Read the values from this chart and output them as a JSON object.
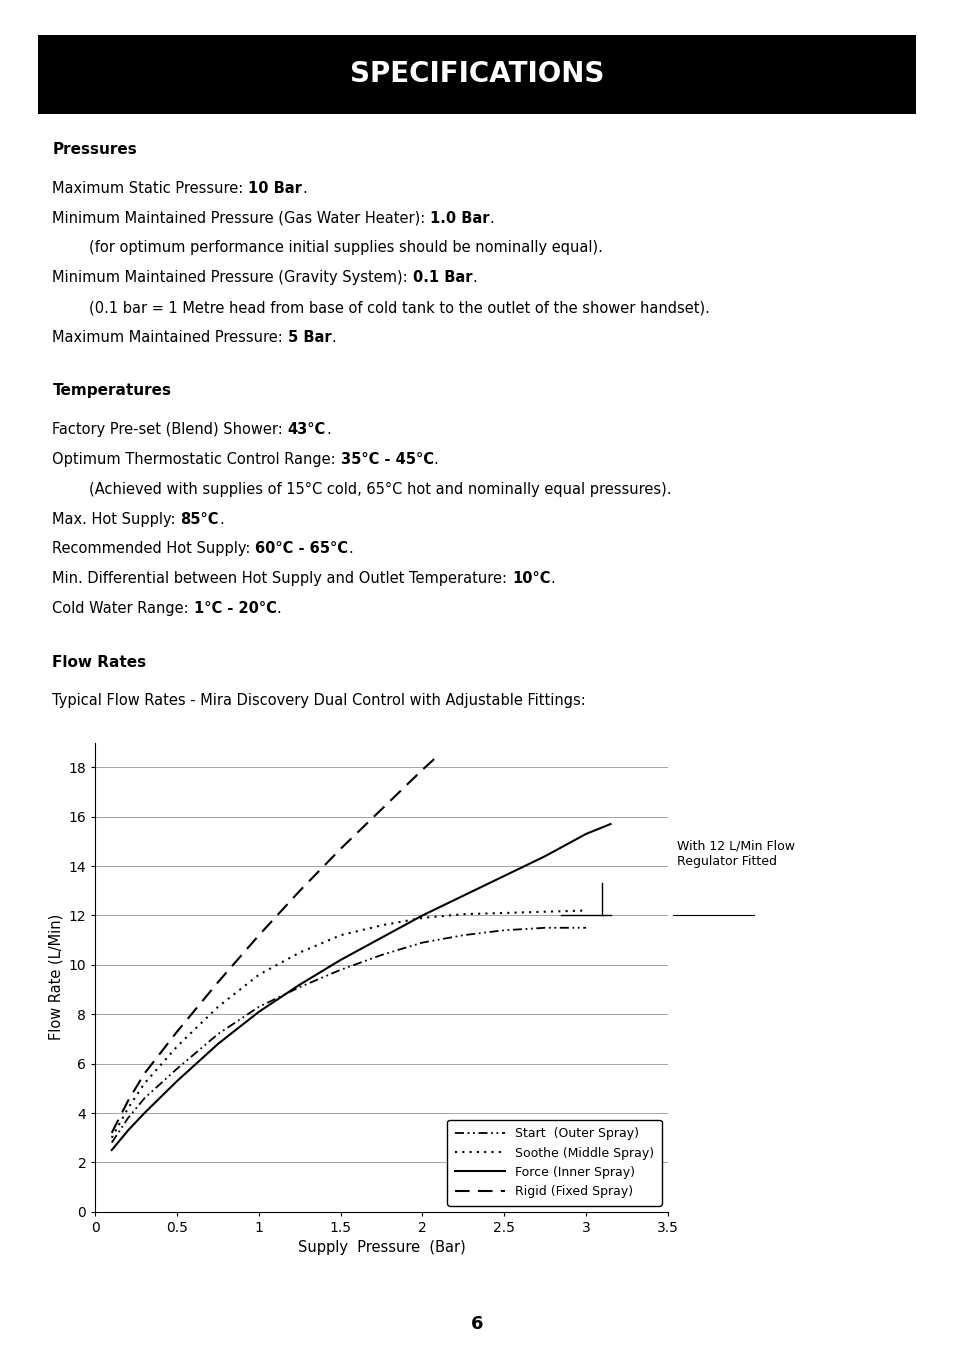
{
  "title": "SPECIFICATIONS",
  "title_bg": "#000000",
  "title_color": "#ffffff",
  "page_number": "6",
  "pressures_heading": "Pressures",
  "temperatures_heading": "Temperatures",
  "flow_rates_heading": "Flow Rates",
  "flow_rates_desc": "Typical Flow Rates - Mira Discovery Dual Control with Adjustable Fittings:",
  "xlabel": "Supply  Pressure  (Bar)",
  "ylabel": "Flow Rate (L/Min)",
  "xlim": [
    0,
    3.5
  ],
  "ylim": [
    0,
    19
  ],
  "xticks": [
    0,
    0.5,
    1.0,
    1.5,
    2.0,
    2.5,
    3.0,
    3.5
  ],
  "yticks": [
    0,
    2,
    4,
    6,
    8,
    10,
    12,
    14,
    16,
    18
  ],
  "annotation_text": "With 12 L/Min Flow\nRegulator Fitted",
  "curves": {
    "start_x": [
      0.1,
      0.2,
      0.3,
      0.5,
      0.75,
      1.0,
      1.25,
      1.5,
      1.75,
      2.0,
      2.25,
      2.5,
      2.75,
      3.0
    ],
    "start_y": [
      2.8,
      3.8,
      4.6,
      5.8,
      7.2,
      8.3,
      9.1,
      9.8,
      10.4,
      10.9,
      11.2,
      11.4,
      11.5,
      11.5
    ],
    "soothe_x": [
      0.1,
      0.2,
      0.3,
      0.5,
      0.75,
      1.0,
      1.25,
      1.5,
      1.75,
      2.0,
      2.25,
      2.5,
      2.75,
      3.0
    ],
    "soothe_y": [
      3.0,
      4.2,
      5.2,
      6.7,
      8.3,
      9.6,
      10.5,
      11.2,
      11.6,
      11.9,
      12.05,
      12.1,
      12.15,
      12.2
    ],
    "force_x": [
      0.1,
      0.2,
      0.3,
      0.5,
      0.75,
      1.0,
      1.25,
      1.5,
      1.75,
      2.0,
      2.25,
      2.5,
      2.75,
      3.0,
      3.15
    ],
    "force_y": [
      2.5,
      3.3,
      4.0,
      5.3,
      6.8,
      8.1,
      9.2,
      10.2,
      11.1,
      12.0,
      12.8,
      13.6,
      14.4,
      15.3,
      15.7
    ],
    "rigid_x": [
      0.1,
      0.2,
      0.3,
      0.5,
      0.75,
      1.0,
      1.25,
      1.5,
      1.75,
      2.0,
      2.1
    ],
    "rigid_y": [
      3.2,
      4.5,
      5.6,
      7.3,
      9.3,
      11.2,
      13.0,
      14.7,
      16.3,
      17.9,
      18.5
    ]
  }
}
